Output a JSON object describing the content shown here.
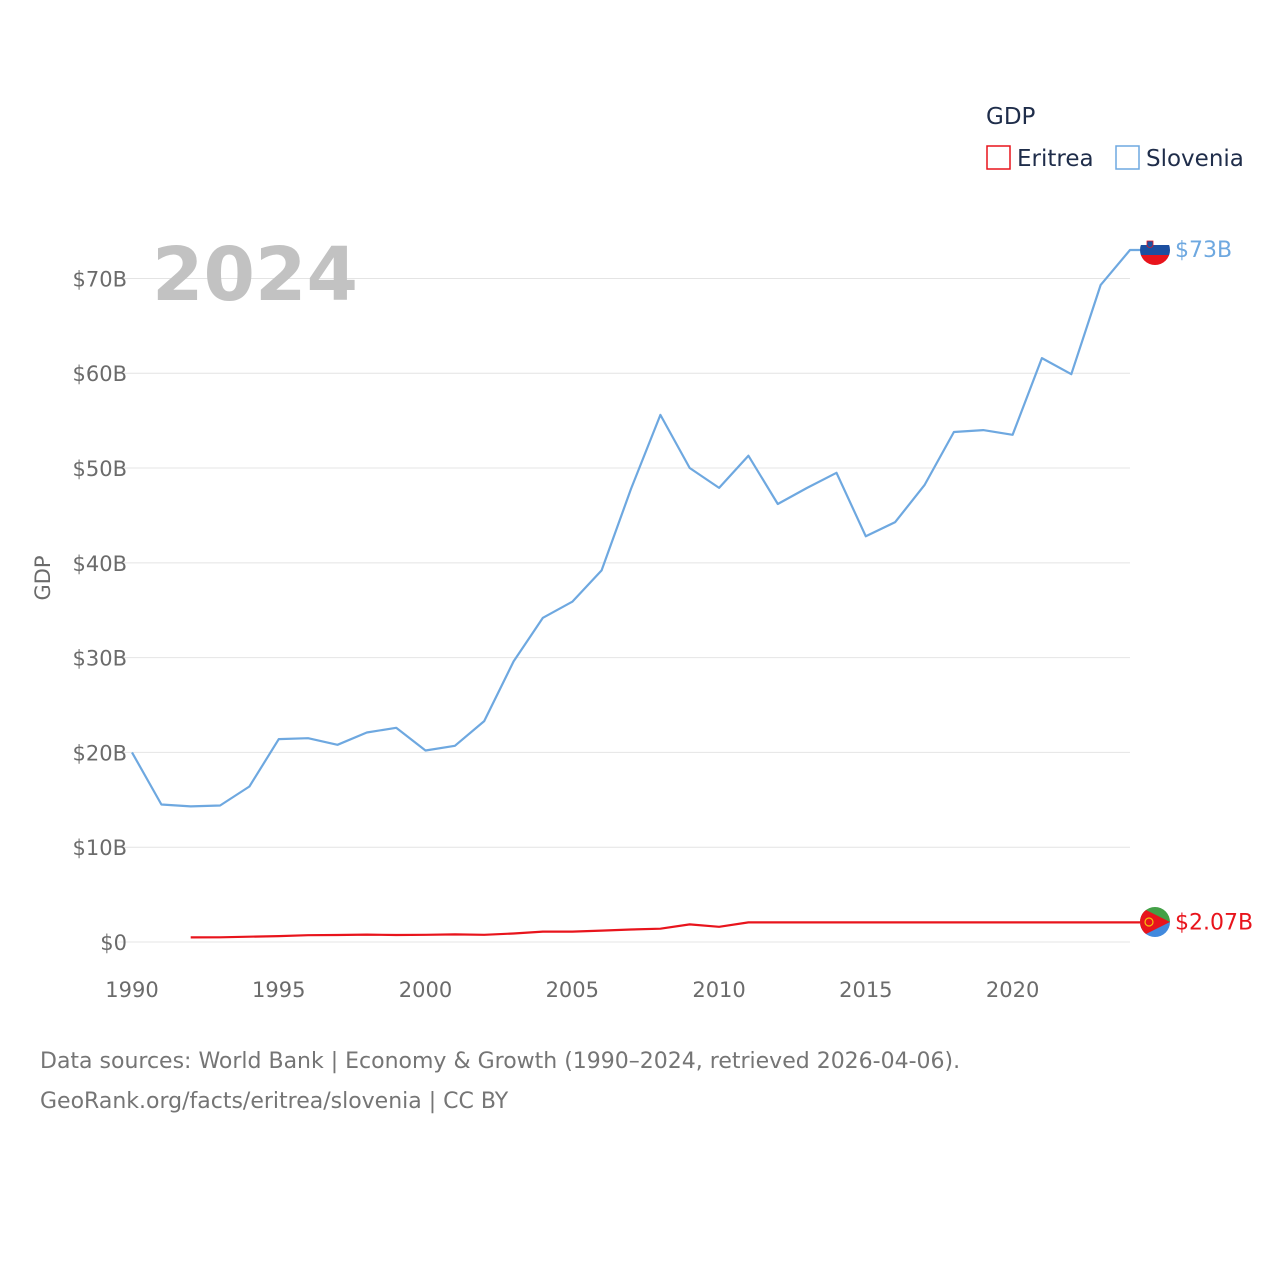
{
  "chart_data": {
    "type": "line",
    "year_watermark": "2024",
    "ylabel": "GDP",
    "xlabel": "",
    "xlim": [
      1990,
      2024
    ],
    "ylim": [
      0,
      73
    ],
    "x_ticks": [
      1990,
      1995,
      2000,
      2005,
      2010,
      2015,
      2020
    ],
    "y_ticks": [
      {
        "value": 0,
        "label": "$0"
      },
      {
        "value": 10,
        "label": "$10B"
      },
      {
        "value": 20,
        "label": "$20B"
      },
      {
        "value": 30,
        "label": "$30B"
      },
      {
        "value": 40,
        "label": "$40B"
      },
      {
        "value": 50,
        "label": "$50B"
      },
      {
        "value": 60,
        "label": "$60B"
      },
      {
        "value": 70,
        "label": "$70B"
      }
    ],
    "legend": {
      "title": "GDP",
      "placement": "top-right"
    },
    "series": [
      {
        "name": "Eritrea",
        "color": "#e8141c",
        "end_label": "$2.07B",
        "x": [
          1992,
          1993,
          1994,
          1995,
          1996,
          1997,
          1998,
          1999,
          2000,
          2001,
          2002,
          2003,
          2004,
          2005,
          2006,
          2007,
          2008,
          2009,
          2010,
          2011,
          2024
        ],
        "values": [
          0.48,
          0.5,
          0.56,
          0.62,
          0.72,
          0.74,
          0.78,
          0.74,
          0.76,
          0.8,
          0.76,
          0.9,
          1.1,
          1.1,
          1.2,
          1.32,
          1.4,
          1.86,
          1.6,
          2.07,
          2.07
        ]
      },
      {
        "name": "Slovenia",
        "color": "#6ea8e0",
        "end_label": "$73B",
        "x": [
          1990,
          1991,
          1992,
          1993,
          1994,
          1995,
          1996,
          1997,
          1998,
          1999,
          2000,
          2001,
          2002,
          2003,
          2004,
          2005,
          2006,
          2007,
          2008,
          2009,
          2010,
          2011,
          2012,
          2013,
          2014,
          2015,
          2016,
          2017,
          2018,
          2019,
          2020,
          2021,
          2022,
          2023,
          2024
        ],
        "values": [
          20.0,
          14.5,
          14.3,
          14.4,
          16.4,
          21.4,
          21.5,
          20.8,
          22.1,
          22.6,
          20.2,
          20.7,
          23.3,
          29.6,
          34.2,
          35.9,
          39.2,
          47.8,
          55.6,
          50.0,
          47.9,
          51.3,
          46.2,
          47.9,
          49.5,
          42.8,
          44.3,
          48.2,
          53.8,
          54.0,
          53.5,
          61.6,
          59.9,
          69.3,
          73.0
        ]
      }
    ]
  },
  "footer": {
    "line1": "Data sources: World Bank | Economy & Growth (1990–2024, retrieved 2026-04-06).",
    "line2": "GeoRank.org/facts/eritrea/slovenia | CC BY"
  }
}
